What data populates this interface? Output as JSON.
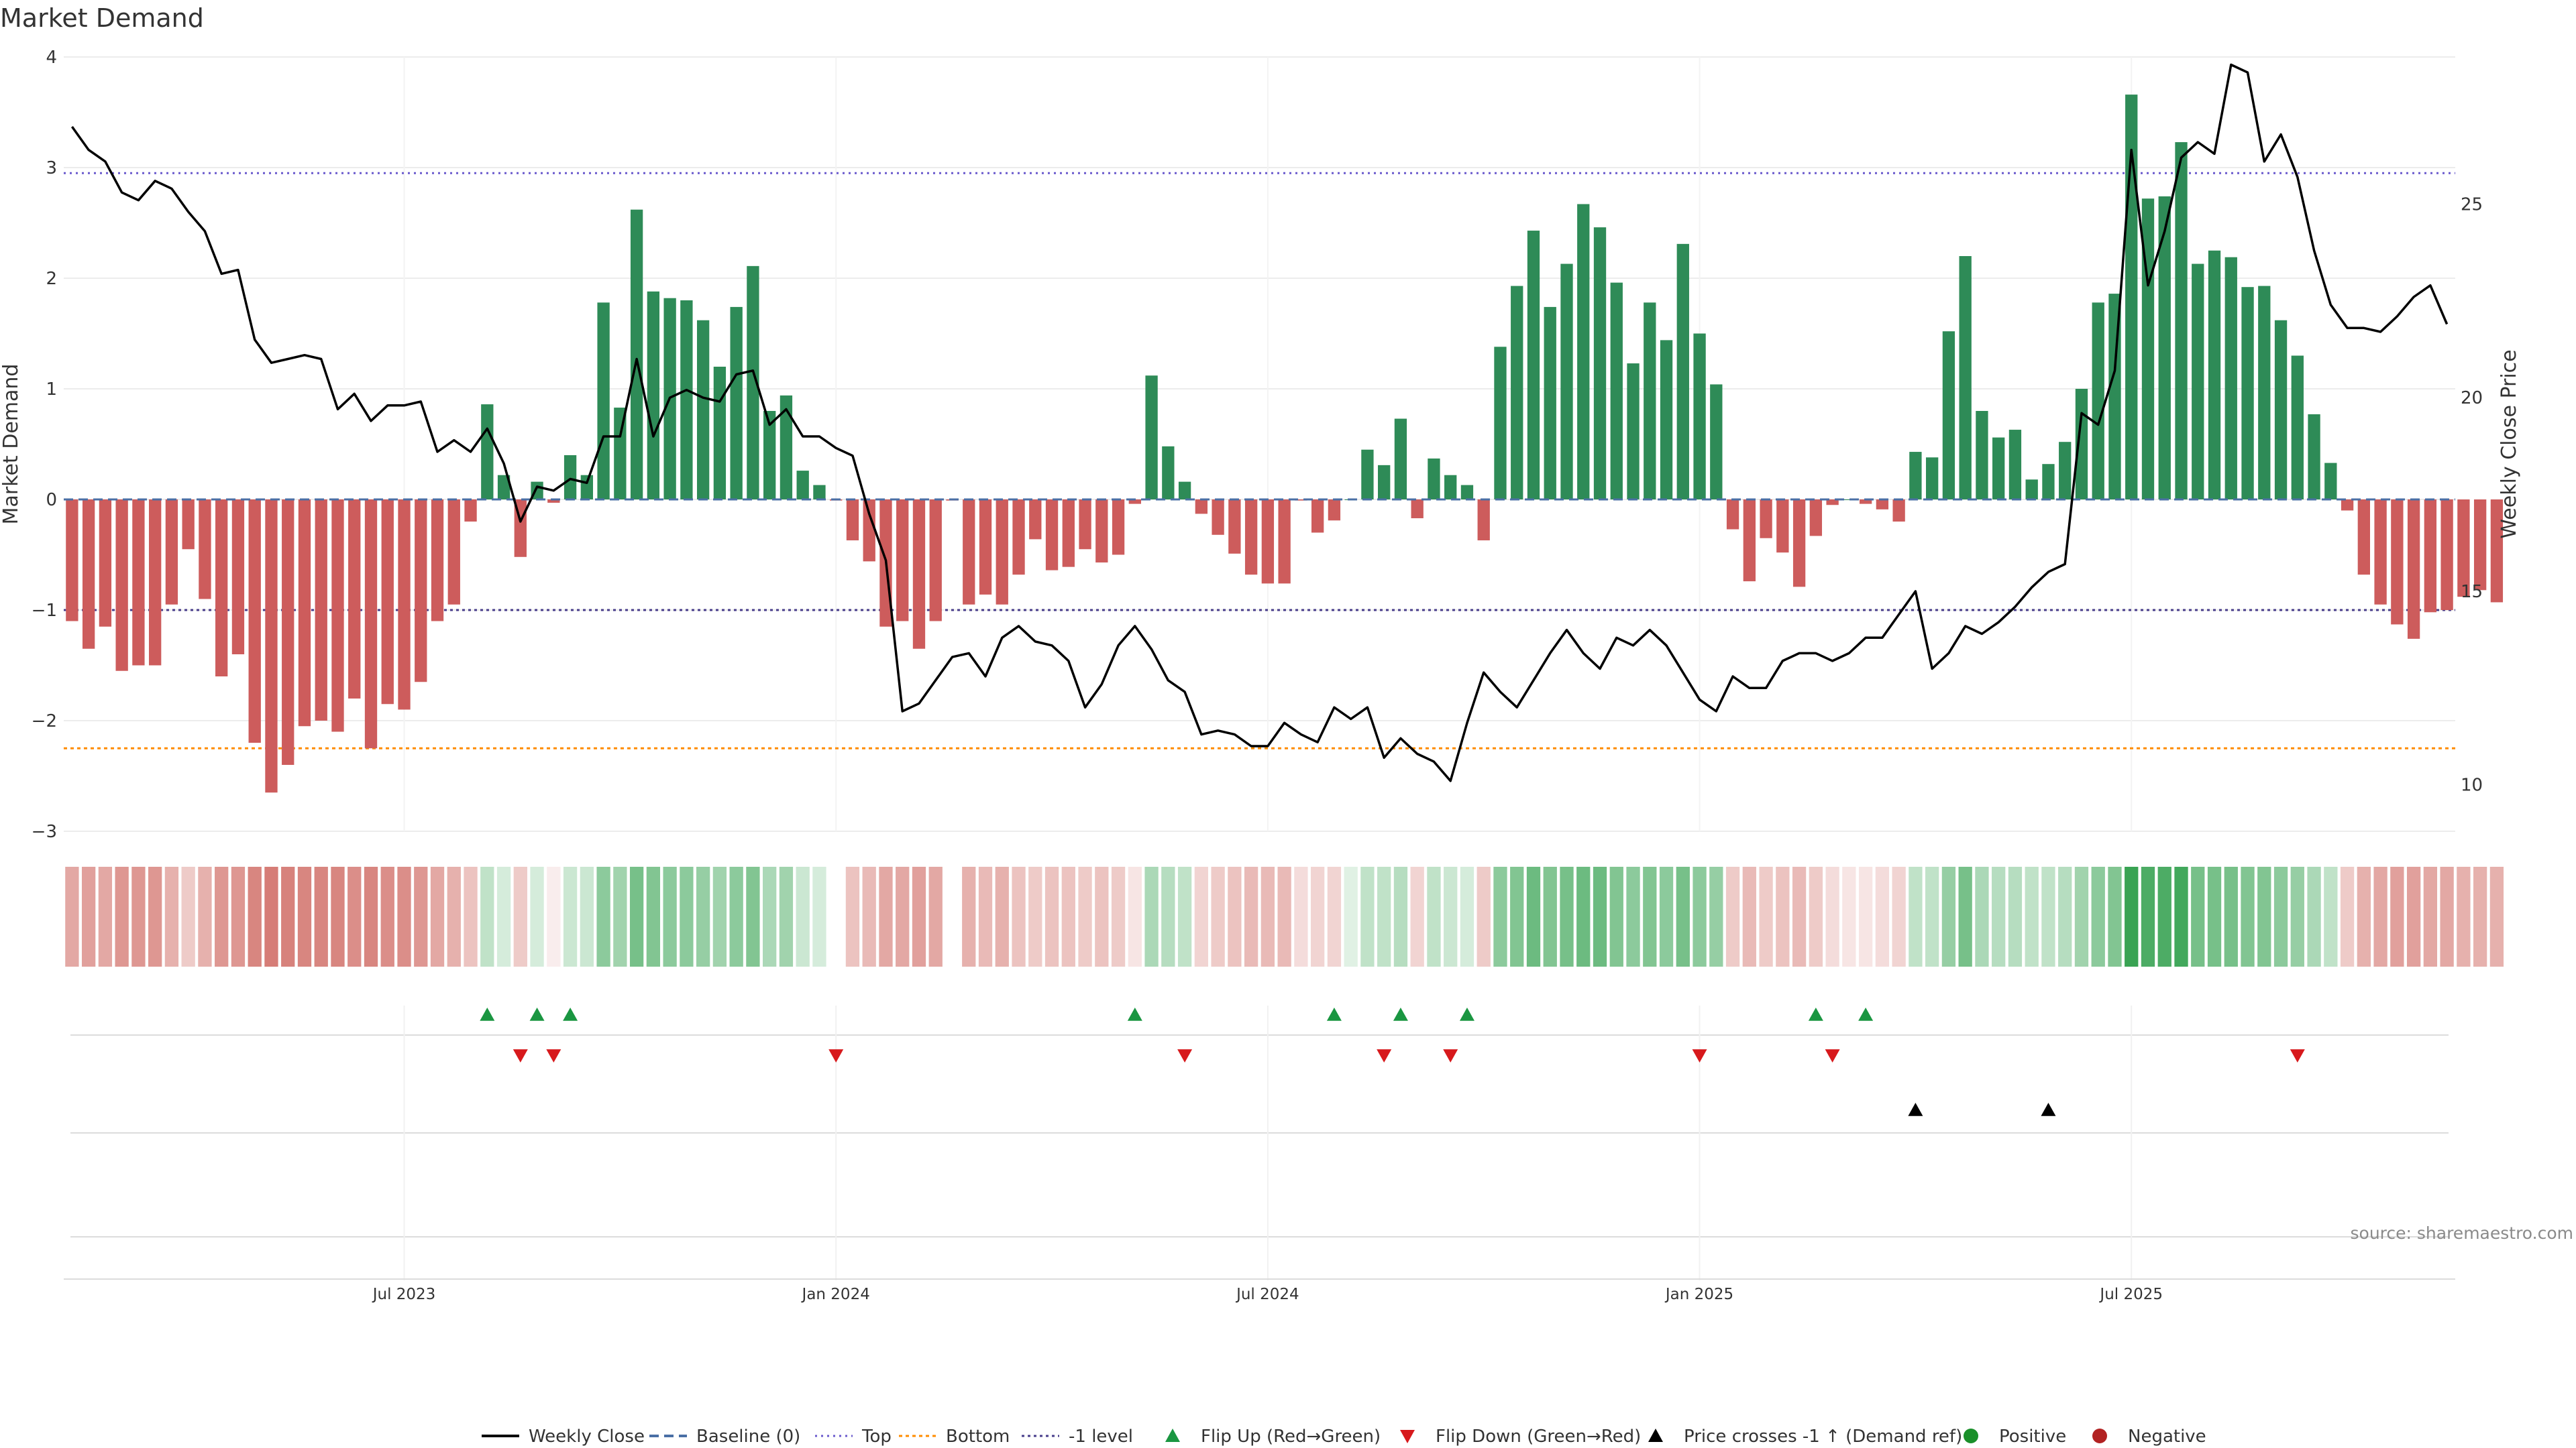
{
  "title": "Market Demand",
  "source": "source: sharemaestro.com",
  "colors": {
    "positive_bar": "#2e8b57",
    "negative_bar": "#cd5c5c",
    "price_line": "#000000",
    "baseline": "#4a6fa5",
    "top": "#6a5acd",
    "bottom": "#ff8c00",
    "minus_one": "#483d8b",
    "flip_up": "#1a9641",
    "flip_down": "#d7191c",
    "price_cross": "#000000",
    "positive": "#1a8f2a",
    "negative": "#b22222"
  },
  "chart_data": {
    "type": "bar",
    "title": "Market Demand",
    "ylabel": "Market Demand",
    "y2label": "Weekly Close Price",
    "ylim": [
      -3,
      4
    ],
    "y2lim": [
      8.8,
      28.8
    ],
    "yticks": [
      {
        "v": 4,
        "label": "4"
      },
      {
        "v": 3,
        "label": "3"
      },
      {
        "v": 2,
        "label": "2"
      },
      {
        "v": 1,
        "label": "1"
      },
      {
        "v": 0,
        "label": "0"
      },
      {
        "v": -1,
        "label": "−1"
      },
      {
        "v": -2,
        "label": "−2"
      },
      {
        "v": -3,
        "label": "−3"
      }
    ],
    "y2ticks": [
      {
        "v": 10,
        "label": "10"
      },
      {
        "v": 15,
        "label": "15"
      },
      {
        "v": 20,
        "label": "20"
      },
      {
        "v": 25,
        "label": "25"
      }
    ],
    "week_index_range": [
      -0.5,
      143.5
    ],
    "xticks": [
      {
        "week": 20,
        "label": "Jul 2023"
      },
      {
        "week": 46,
        "label": "Jan 2024"
      },
      {
        "week": 72,
        "label": "Jul 2024"
      },
      {
        "week": 98,
        "label": "Jan 2025"
      },
      {
        "week": 124,
        "label": "Jul 2025"
      }
    ],
    "reference_lines": {
      "baseline": 0,
      "top": 2.95,
      "bottom": -2.25,
      "minus_one": -1
    },
    "demand": [
      -1.1,
      -1.35,
      -1.15,
      -1.55,
      -1.5,
      -1.5,
      -0.95,
      -0.45,
      -0.9,
      -1.6,
      -1.4,
      -2.2,
      -2.65,
      -2.4,
      -2.05,
      -2.0,
      -2.1,
      -1.8,
      -2.25,
      -1.85,
      -1.9,
      -1.65,
      -1.1,
      -0.95,
      -0.2,
      0.86,
      0.22,
      -0.52,
      0.16,
      -0.03,
      0.4,
      0.22,
      1.78,
      0.83,
      2.62,
      1.88,
      1.82,
      1.8,
      1.62,
      1.2,
      1.74,
      2.11,
      0.8,
      0.94,
      0.26,
      0.13,
      -0.01,
      -0.37,
      -0.56,
      -1.15,
      -1.1,
      -1.35,
      -1.1,
      -0.01,
      -0.95,
      -0.86,
      -0.95,
      -0.68,
      -0.36,
      -0.64,
      -0.61,
      -0.45,
      -0.57,
      -0.5,
      -0.04,
      1.12,
      0.48,
      0.16,
      -0.13,
      -0.32,
      -0.49,
      -0.68,
      -0.76,
      -0.76,
      -0.01,
      -0.3,
      -0.19,
      0.0,
      0.45,
      0.31,
      0.73,
      -0.17,
      0.37,
      0.22,
      0.13,
      -0.37,
      1.38,
      1.93,
      2.43,
      1.74,
      2.13,
      2.67,
      2.46,
      1.96,
      1.23,
      1.78,
      1.44,
      2.31,
      1.5,
      1.04,
      -0.27,
      -0.74,
      -0.35,
      -0.48,
      -0.79,
      -0.33,
      -0.05,
      0.0,
      -0.04,
      -0.09,
      -0.2,
      0.43,
      0.38,
      1.52,
      2.2,
      0.8,
      0.56,
      0.63,
      0.18,
      0.32,
      0.52,
      1.0,
      1.78,
      1.86,
      3.66,
      2.72,
      2.74,
      3.23,
      2.13,
      2.25,
      2.19,
      1.92,
      1.93,
      1.62,
      1.3,
      0.77,
      0.33,
      -0.1,
      -0.68,
      -0.95,
      -1.13,
      -1.26,
      -1.02,
      -1.0,
      -0.88,
      -0.82,
      -0.93
    ],
    "weekly_close": [
      27.0,
      26.4,
      26.1,
      25.3,
      25.1,
      25.6,
      25.4,
      24.8,
      24.3,
      23.2,
      23.3,
      21.5,
      20.9,
      21.0,
      21.1,
      21.0,
      19.7,
      20.1,
      19.4,
      19.8,
      19.8,
      19.9,
      18.6,
      18.9,
      18.6,
      19.2,
      18.3,
      16.8,
      17.7,
      17.6,
      17.9,
      17.8,
      19.0,
      19.0,
      21.0,
      19.0,
      20.0,
      20.2,
      20.0,
      19.9,
      20.6,
      20.7,
      19.3,
      19.7,
      19.0,
      19.0,
      18.7,
      18.5,
      17.0,
      15.8,
      11.9,
      12.1,
      12.7,
      13.3,
      13.4,
      12.8,
      13.8,
      14.1,
      13.7,
      13.6,
      13.2,
      12.0,
      12.6,
      13.6,
      14.1,
      13.5,
      12.7,
      12.4,
      11.3,
      11.4,
      11.3,
      11.0,
      11.0,
      11.6,
      11.3,
      11.1,
      12.0,
      11.7,
      12.0,
      10.7,
      11.2,
      10.8,
      10.6,
      10.1,
      11.6,
      12.9,
      12.4,
      12.0,
      12.7,
      13.4,
      14.0,
      13.4,
      13.0,
      13.8,
      13.6,
      14.0,
      13.6,
      12.9,
      12.2,
      11.9,
      12.8,
      12.5,
      12.5,
      13.2,
      13.4,
      13.4,
      13.2,
      13.4,
      13.8,
      13.8,
      14.4,
      15.0,
      13.0,
      13.4,
      14.1,
      13.9,
      14.2,
      14.6,
      15.1,
      15.5,
      15.7,
      19.6,
      19.3,
      20.7,
      26.4,
      22.9,
      24.3,
      26.2,
      26.6,
      26.3,
      28.6,
      28.4,
      26.1,
      26.8,
      25.7,
      23.8,
      22.4,
      21.8,
      21.8,
      21.7,
      22.1,
      22.6,
      22.9,
      21.9
    ],
    "strength_blocks": [
      -0.5,
      -0.55,
      -0.5,
      -0.6,
      -0.6,
      -0.6,
      -0.45,
      -0.3,
      -0.45,
      -0.6,
      -0.6,
      -0.7,
      -0.75,
      -0.72,
      -0.7,
      -0.7,
      -0.7,
      -0.65,
      -0.7,
      -0.65,
      -0.65,
      -0.6,
      -0.5,
      -0.45,
      -0.35,
      0.3,
      0.2,
      -0.3,
      0.2,
      -0.1,
      0.25,
      0.25,
      0.55,
      0.45,
      0.65,
      0.6,
      0.55,
      0.55,
      0.5,
      0.45,
      0.55,
      0.6,
      0.4,
      0.45,
      0.25,
      0.2,
      null,
      -0.35,
      -0.4,
      -0.5,
      -0.5,
      -0.55,
      -0.5,
      null,
      -0.45,
      -0.4,
      -0.45,
      -0.35,
      -0.3,
      -0.35,
      -0.35,
      -0.3,
      -0.35,
      -0.3,
      -0.15,
      0.4,
      0.35,
      0.3,
      -0.25,
      -0.3,
      -0.35,
      -0.4,
      -0.4,
      -0.4,
      -0.2,
      -0.25,
      -0.25,
      0.15,
      0.3,
      0.3,
      0.35,
      -0.25,
      0.3,
      0.25,
      0.2,
      -0.3,
      0.55,
      0.6,
      0.7,
      0.6,
      0.65,
      0.7,
      0.7,
      0.6,
      0.55,
      0.6,
      0.55,
      0.65,
      0.55,
      0.5,
      -0.3,
      -0.4,
      -0.3,
      -0.35,
      -0.4,
      -0.3,
      -0.2,
      -0.15,
      -0.15,
      -0.2,
      -0.25,
      0.3,
      0.3,
      0.5,
      0.65,
      0.4,
      0.35,
      0.35,
      0.3,
      0.3,
      0.35,
      0.45,
      0.55,
      0.6,
      0.95,
      0.85,
      0.85,
      0.9,
      0.65,
      0.65,
      0.65,
      0.6,
      0.6,
      0.55,
      0.5,
      0.4,
      0.3,
      -0.3,
      -0.45,
      -0.5,
      -0.55,
      -0.55,
      -0.5,
      -0.5,
      -0.45,
      -0.45,
      -0.45
    ],
    "flip_up_weeks": [
      25,
      28,
      30,
      64,
      76,
      80,
      84,
      105,
      108
    ],
    "flip_down_weeks": [
      27,
      29,
      46,
      67,
      79,
      83,
      98,
      106,
      134
    ],
    "price_cross_up_weeks": [
      111,
      119
    ]
  },
  "legend": [
    {
      "key": "weekly_close",
      "label": "Weekly Close",
      "marker": "line-solid"
    },
    {
      "key": "baseline",
      "label": "Baseline (0)",
      "marker": "line-dashed"
    },
    {
      "key": "top",
      "label": "Top",
      "marker": "line-dotted"
    },
    {
      "key": "bottom",
      "label": "Bottom",
      "marker": "line-dotted-orange"
    },
    {
      "key": "minus_one",
      "label": "-1 level",
      "marker": "line-dotted-dark"
    },
    {
      "key": "flip_up",
      "label": "Flip Up (Red→Green)",
      "marker": "triangle-up-green"
    },
    {
      "key": "flip_down",
      "label": "Flip Down (Green→Red)",
      "marker": "triangle-down-red"
    },
    {
      "key": "price_cross",
      "label": "Price crosses -1 ↑ (Demand ref)",
      "marker": "triangle-up-black"
    },
    {
      "key": "positive",
      "label": "Positive",
      "marker": "dot-green"
    },
    {
      "key": "negative",
      "label": "Negative",
      "marker": "dot-red"
    }
  ]
}
